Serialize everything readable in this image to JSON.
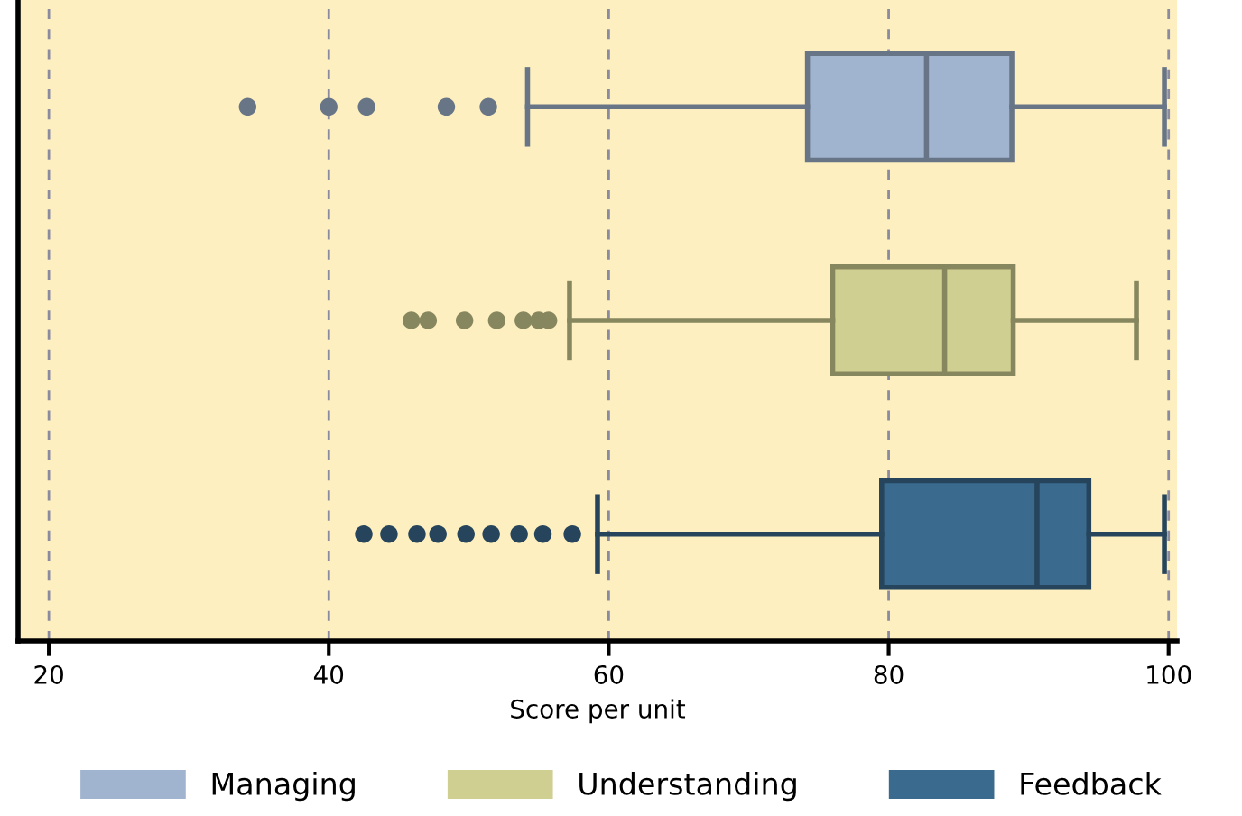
{
  "chart_data": {
    "type": "box",
    "orientation": "horizontal",
    "xlabel": "Score per unit",
    "categories": [
      null,
      null,
      null
    ],
    "xlim": [
      17.8,
      100.6
    ],
    "xticks": [
      20,
      40,
      60,
      80,
      100
    ],
    "grid": "x",
    "legend": "bottom",
    "tick_labels": "x",
    "marker": "circle",
    "series": [
      {
        "name": "Managing",
        "color": "#a0b4cf",
        "boxes": [
          {
            "low": 54.2,
            "q1": 74.2,
            "median": 82.7,
            "q3": 88.8,
            "high": 99.7,
            "outliers": [
              34.2,
              40.0,
              42.7,
              48.4,
              51.4
            ]
          },
          null,
          null
        ]
      },
      {
        "name": "Understanding",
        "color": "#d0cf92",
        "boxes": [
          null,
          {
            "low": 57.2,
            "q1": 76.0,
            "median": 84.0,
            "q3": 88.9,
            "high": 97.7,
            "outliers": [
              45.9,
              47.1,
              49.7,
              52.0,
              53.9,
              55.0,
              55.7
            ]
          },
          null
        ]
      },
      {
        "name": "Feedback",
        "color": "#3a6a8e",
        "boxes": [
          null,
          null,
          {
            "low": 59.2,
            "q1": 79.5,
            "median": 90.6,
            "q3": 94.3,
            "high": 99.7,
            "outliers": [
              42.5,
              44.3,
              46.3,
              47.8,
              49.8,
              51.6,
              53.6,
              55.3,
              57.4
            ]
          }
        ]
      }
    ]
  }
}
